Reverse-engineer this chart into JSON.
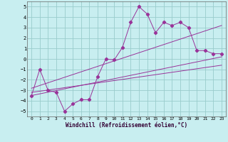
{
  "xlabel": "Windchill (Refroidissement éolien,°C)",
  "bg_color": "#c8eef0",
  "grid_color": "#99cccc",
  "line_color": "#993399",
  "xlim": [
    -0.5,
    23.5
  ],
  "ylim": [
    -5.5,
    5.5
  ],
  "xticks": [
    0,
    1,
    2,
    3,
    4,
    5,
    6,
    7,
    8,
    9,
    10,
    11,
    12,
    13,
    14,
    15,
    16,
    17,
    18,
    19,
    20,
    21,
    22,
    23
  ],
  "yticks": [
    -5,
    -4,
    -3,
    -2,
    -1,
    0,
    1,
    2,
    3,
    4,
    5
  ],
  "main_x": [
    0,
    1,
    2,
    3,
    4,
    5,
    6,
    7,
    8,
    9,
    10,
    11,
    12,
    13,
    14,
    15,
    16,
    17,
    18,
    19,
    20,
    21,
    22,
    23
  ],
  "main_y": [
    -3.5,
    -1.0,
    -3.0,
    -3.2,
    -5.0,
    -4.3,
    -3.9,
    -3.9,
    -1.7,
    0.0,
    -0.1,
    1.1,
    3.5,
    5.0,
    4.3,
    2.5,
    3.5,
    3.2,
    3.5,
    3.0,
    0.8,
    0.8,
    0.5,
    0.5
  ],
  "line1_x": [
    0,
    23
  ],
  "line1_y": [
    -3.5,
    0.2
  ],
  "line2_x": [
    0,
    23
  ],
  "line2_y": [
    -2.8,
    3.2
  ],
  "line3_x": [
    0,
    23
  ],
  "line3_y": [
    -3.2,
    -0.6
  ]
}
